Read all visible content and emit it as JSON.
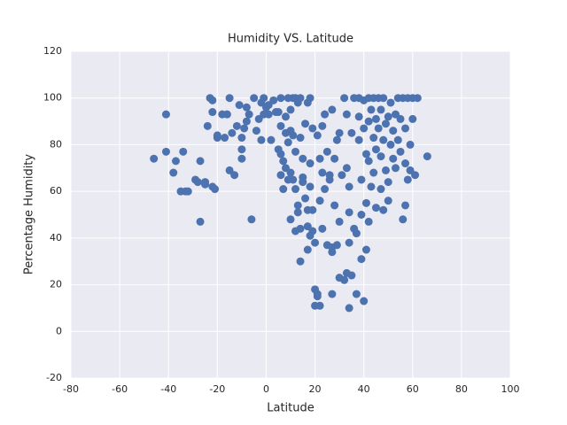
{
  "chart_data": {
    "type": "scatter",
    "title": "Humidity VS. Latitude",
    "xlabel": "Latitude",
    "ylabel": "Percentage Humidity",
    "color": "#4c72b0",
    "xlim": [
      -80,
      100
    ],
    "xticks": [
      -80,
      -60,
      -40,
      -20,
      0,
      20,
      40,
      60,
      80,
      100
    ],
    "ylim": [
      -20,
      120
    ],
    "yticks": [
      -20,
      0,
      20,
      40,
      60,
      80,
      100,
      120
    ],
    "grid": true,
    "x": [
      -46,
      -41,
      -41,
      -38,
      -37,
      -35,
      -34,
      -33,
      -32,
      -29,
      -28,
      -27,
      -27,
      -25,
      -25,
      -24,
      -23,
      -22,
      -22,
      -22,
      -21,
      -20,
      -20,
      -18,
      -17,
      -16,
      -15,
      -15,
      -14,
      -13,
      -12,
      -11,
      -10,
      -10,
      -10,
      -9,
      -8,
      -8,
      -7,
      -6,
      -5,
      -4,
      -3,
      -2,
      -2,
      -1,
      -1,
      0,
      1,
      1,
      2,
      3,
      4,
      5,
      5,
      6,
      6,
      6,
      6,
      7,
      7,
      8,
      8,
      8,
      9,
      9,
      9,
      10,
      10,
      10,
      10,
      11,
      11,
      11,
      12,
      12,
      12,
      12,
      13,
      13,
      13,
      14,
      14,
      14,
      14,
      15,
      15,
      15,
      16,
      16,
      17,
      17,
      17,
      17,
      18,
      18,
      18,
      18,
      19,
      19,
      19,
      20,
      20,
      20,
      21,
      21,
      21,
      22,
      22,
      22,
      23,
      23,
      23,
      24,
      24,
      25,
      25,
      26,
      26,
      27,
      27,
      27,
      27,
      28,
      28,
      29,
      29,
      30,
      30,
      30,
      31,
      32,
      32,
      33,
      33,
      33,
      34,
      34,
      34,
      34,
      35,
      35,
      36,
      36,
      37,
      37,
      38,
      38,
      38,
      39,
      39,
      39,
      40,
      40,
      40,
      41,
      41,
      41,
      42,
      42,
      42,
      42,
      43,
      43,
      44,
      44,
      44,
      45,
      45,
      45,
      46,
      46,
      47,
      47,
      47,
      48,
      48,
      48,
      49,
      49,
      50,
      50,
      50,
      51,
      51,
      52,
      52,
      53,
      53,
      54,
      54,
      55,
      55,
      56,
      56,
      57,
      57,
      57,
      58,
      58,
      59,
      59,
      60,
      60,
      61,
      62,
      66
    ],
    "values": [
      74,
      93,
      77,
      68,
      73,
      60,
      77,
      60,
      60,
      65,
      64,
      73,
      47,
      63,
      64,
      88,
      100,
      99,
      94,
      62,
      61,
      84,
      83,
      93,
      83,
      93,
      100,
      69,
      85,
      67,
      88,
      97,
      78,
      74,
      83,
      87,
      90,
      96,
      93,
      48,
      100,
      86,
      91,
      82,
      98,
      93,
      100,
      96,
      97,
      93,
      82,
      99,
      94,
      94,
      78,
      100,
      88,
      76,
      67,
      61,
      73,
      85,
      92,
      70,
      100,
      81,
      65,
      95,
      86,
      48,
      68,
      100,
      84,
      65,
      100,
      61,
      43,
      77,
      98,
      54,
      51,
      100,
      83,
      44,
      30,
      66,
      74,
      64,
      89,
      57,
      45,
      35,
      52,
      98,
      62,
      41,
      72,
      100,
      43,
      52,
      87,
      38,
      11,
      18,
      15,
      16,
      84,
      74,
      56,
      11,
      88,
      68,
      44,
      61,
      93,
      37,
      77,
      65,
      67,
      36,
      16,
      34,
      95,
      54,
      74,
      37,
      82,
      47,
      23,
      85,
      67,
      100,
      22,
      25,
      93,
      70,
      38,
      51,
      10,
      62,
      24,
      85,
      100,
      44,
      16,
      42,
      100,
      82,
      92,
      31,
      50,
      65,
      13,
      99,
      87,
      35,
      55,
      76,
      100,
      73,
      47,
      90,
      62,
      95,
      100,
      83,
      68,
      91,
      53,
      78,
      100,
      87,
      61,
      75,
      95,
      52,
      82,
      100,
      89,
      69,
      64,
      92,
      56,
      98,
      80,
      86,
      74,
      93,
      70,
      100,
      82,
      77,
      91,
      100,
      48,
      54,
      87,
      72,
      65,
      100,
      80,
      69,
      91,
      100,
      67,
      100,
      75
    ]
  }
}
